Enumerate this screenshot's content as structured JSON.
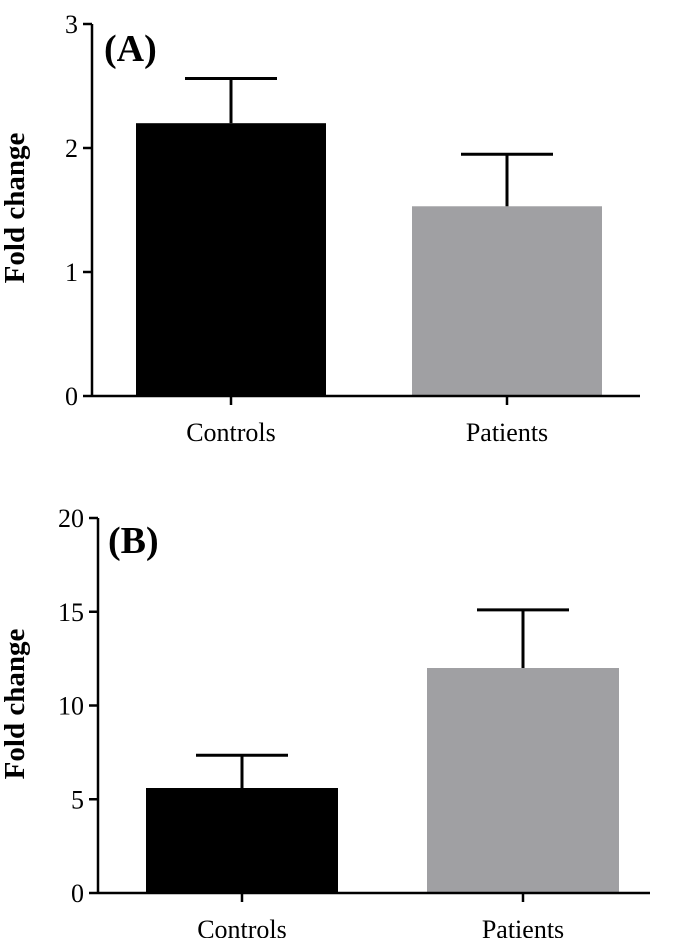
{
  "chart_data": [
    {
      "type": "bar",
      "panel_label": "(A)",
      "ylabel": "Fold change",
      "xlabel": "",
      "categories": [
        "Controls",
        "Patients"
      ],
      "values": [
        2.2,
        1.53
      ],
      "errors": [
        0.36,
        0.42
      ],
      "colors": [
        "#000000",
        "#a0a0a3"
      ],
      "ylim": [
        0,
        3
      ],
      "yticks": [
        0,
        1,
        2,
        3
      ],
      "grid": false
    },
    {
      "type": "bar",
      "panel_label": "(B)",
      "ylabel": "Fold change",
      "xlabel": "",
      "categories": [
        "Controls",
        "Patients"
      ],
      "values": [
        5.6,
        12.0
      ],
      "errors": [
        1.75,
        3.1
      ],
      "colors": [
        "#000000",
        "#a0a0a3"
      ],
      "ylim": [
        0,
        20
      ],
      "yticks": [
        0,
        5,
        10,
        15,
        20
      ],
      "grid": false
    }
  ]
}
